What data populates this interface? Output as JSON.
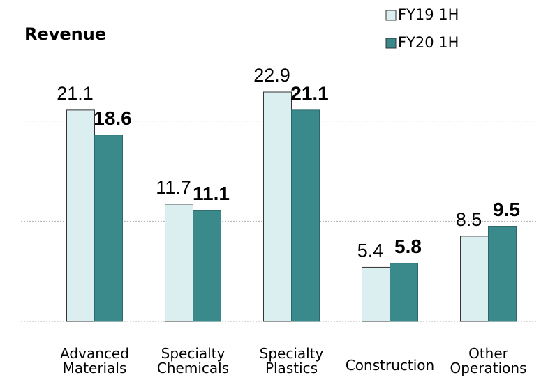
{
  "chart_data": {
    "type": "bar",
    "title": "Revenue",
    "categories": [
      [
        "Advanced",
        "Materials"
      ],
      [
        "Specialty",
        "Chemicals"
      ],
      [
        "Specialty",
        "Plastics"
      ],
      [
        "Construction"
      ],
      [
        "Other",
        "Operations"
      ]
    ],
    "series": [
      {
        "name": "FY19 1H",
        "color": "#dbeef0",
        "values": [
          21.1,
          11.7,
          22.9,
          5.4,
          8.5
        ]
      },
      {
        "name": "FY20 1H",
        "color": "#3a8a8c",
        "values": [
          18.6,
          11.1,
          21.1,
          5.8,
          9.5
        ]
      }
    ],
    "ylim": [
      0,
      30
    ],
    "yticks": [
      0,
      10,
      20
    ],
    "grid": true,
    "legend": "top-right"
  }
}
